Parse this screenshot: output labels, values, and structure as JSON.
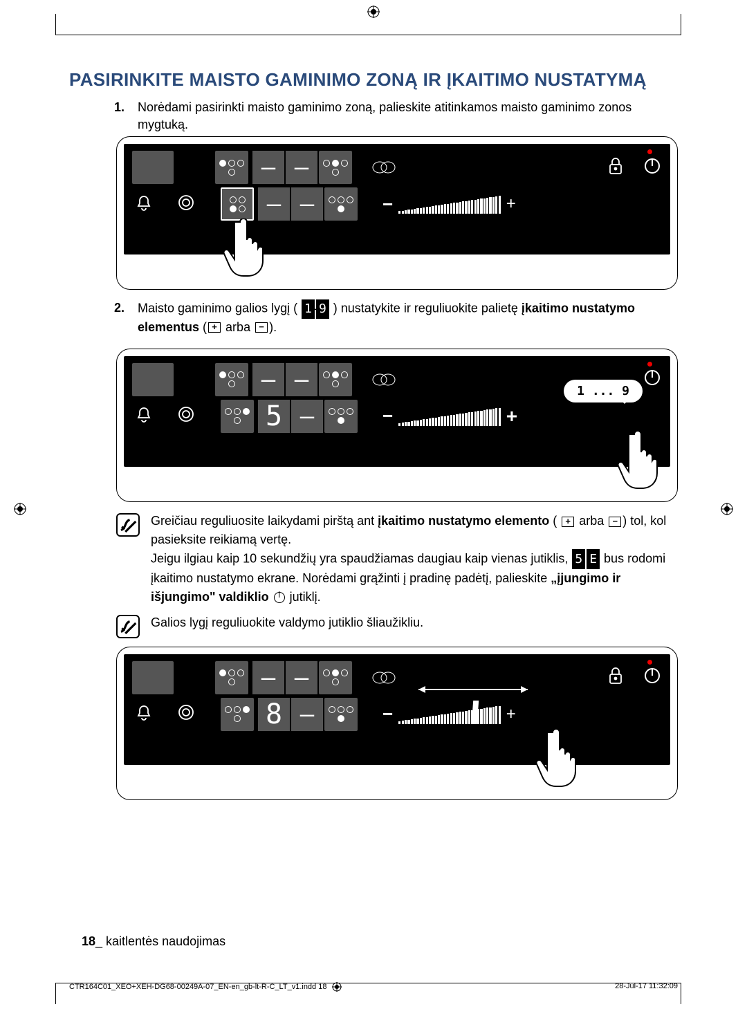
{
  "heading": "PASIRINKITE MAISTO GAMINIMO ZONĄ IR ĮKAITIMO NUSTATYMĄ",
  "heading_color": "#2a4a7a",
  "step1_num": "1.",
  "step1_text": "Norėdami pasirinkti maisto gaminimo zoną, palieskite atitinkamos maisto gaminimo zonos mygtuką.",
  "step2_num": "2.",
  "step2_text_a": "Maisto gaminimo galios lygį ( ",
  "step2_seg1": "1",
  "step2_seg2": "9",
  "step2_text_b": " ) nustatykite ir reguliuokite palietę ",
  "step2_bold": "įkaitimo nustatymo elementus",
  "step2_text_c": " (",
  "step2_or": " arba ",
  "step2_text_d": ").",
  "note1_a": "Greičiau reguliuosite laikydami pirštą ant ",
  "note1_bold1": "įkaitimo nustatymo elemento",
  "note1_b": " ( ",
  "note1_or": " arba ",
  "note1_c": ") tol, kol pasieksite reikiamą vertę.",
  "note1_d": "Jeigu ilgiau kaip 10 sekundžių yra spaudžiamas daugiau kaip vienas jutiklis, ",
  "note1_seg1": "5",
  "note1_seg2": "E",
  "note1_e": " bus rodomi įkaitimo nustatymo ekrane. Norėdami grąžinti į pradinę padėtį, palieskite ",
  "note1_bold2": "„įjungimo ir išjungimo\" valdiklio",
  "note1_f": " jutiklį.",
  "note2": "Galios lygį reguliuokite valdymo jutiklio šliaužikliu.",
  "panels": {
    "p1": {
      "d_tl": "–",
      "d_tr": "–",
      "d_bl": "–",
      "d_br": "–"
    },
    "p2": {
      "d_tl": "–",
      "d_tr": "–",
      "d_bl": "5",
      "d_br": "–",
      "speech": "1 ... 9"
    },
    "p3": {
      "d_tl": "–",
      "d_tr": "–",
      "d_bl": "8",
      "d_br": "–"
    }
  },
  "slider": {
    "bar_count": 34,
    "min_h": 4,
    "max_h": 26
  },
  "colors": {
    "panel_bg": "#000000",
    "button_bg": "#555555",
    "text": "#000000",
    "red_led": "#e00000"
  },
  "footer_num": "18",
  "footer_sep": "_ ",
  "footer_text": "kaitlentės naudojimas",
  "imprint_left": "CTR164C01_XEO+XEH-DG68-00249A-07_EN-en_gb-lt-R-C_LT_v1.indd   18",
  "imprint_right": "28-Jul-17   11:32:09"
}
